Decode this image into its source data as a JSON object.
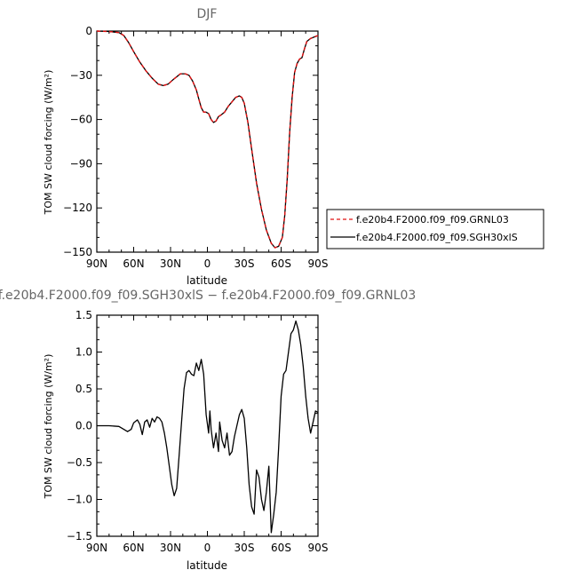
{
  "chart_data": [
    {
      "type": "line",
      "title": "DJF",
      "xlabel": "latitude",
      "ylabel": "TOM SW cloud forcing (W/m²)",
      "xlim": [
        -90,
        90
      ],
      "ylim": [
        -150,
        0
      ],
      "xticks": [
        -90,
        -60,
        -30,
        0,
        30,
        60,
        90
      ],
      "xtick_labels": [
        "90N",
        "60N",
        "30N",
        "0",
        "30S",
        "60S",
        "90S"
      ],
      "yticks": [
        -150,
        -120,
        -90,
        -60,
        -30,
        0
      ],
      "ytick_labels": [
        "−150",
        "−120",
        "−90",
        "−60",
        "−30",
        "0"
      ],
      "grid": false,
      "legend_position": "outside-right",
      "series": [
        {
          "name": "f.e20b4.F2000.f09_f09.GRNL03",
          "color": "#e01010",
          "dash": "dashed",
          "x": [
            -90,
            -80,
            -72,
            -68,
            -64,
            -60,
            -55,
            -50,
            -45,
            -40,
            -36,
            -32,
            -28,
            -25,
            -22,
            -18,
            -15,
            -12,
            -9,
            -7,
            -5,
            -3,
            -1,
            1,
            3,
            5,
            7,
            9,
            11,
            14,
            17,
            20,
            23,
            26,
            28,
            30,
            33,
            36,
            40,
            44,
            48,
            52,
            55,
            58,
            61,
            63,
            65,
            67,
            69,
            71,
            73,
            75,
            77,
            79,
            81,
            84,
            87,
            90
          ],
          "y": [
            0,
            -0.3,
            -1,
            -3,
            -8,
            -14,
            -21,
            -27,
            -32,
            -36,
            -37,
            -36,
            -33,
            -31,
            -29,
            -29,
            -30,
            -34,
            -40,
            -46,
            -52,
            -55,
            -55,
            -56,
            -60,
            -62,
            -61,
            -58,
            -57,
            -55,
            -51,
            -48,
            -45,
            -44,
            -45,
            -49,
            -62,
            -80,
            -103,
            -121,
            -135,
            -144,
            -147,
            -146,
            -140,
            -125,
            -100,
            -68,
            -45,
            -28,
            -22,
            -19,
            -18,
            -12,
            -7,
            -5,
            -4,
            -3
          ]
        },
        {
          "name": "f.e20b4.F2000.f09_f09.SGH30xlS",
          "color": "#000000",
          "dash": "solid",
          "x": [
            -90,
            -80,
            -72,
            -68,
            -64,
            -60,
            -55,
            -50,
            -45,
            -40,
            -36,
            -32,
            -28,
            -25,
            -22,
            -18,
            -15,
            -12,
            -9,
            -7,
            -5,
            -3,
            -1,
            1,
            3,
            5,
            7,
            9,
            11,
            14,
            17,
            20,
            23,
            26,
            28,
            30,
            33,
            36,
            40,
            44,
            48,
            52,
            55,
            58,
            61,
            63,
            65,
            67,
            69,
            71,
            73,
            75,
            77,
            79,
            81,
            84,
            87,
            90
          ],
          "y": [
            0,
            -0.3,
            -1,
            -3,
            -8,
            -14,
            -21,
            -27,
            -32,
            -36,
            -37,
            -36,
            -33,
            -31,
            -29,
            -29,
            -30,
            -34,
            -40,
            -46,
            -52,
            -55,
            -55,
            -56,
            -60,
            -62,
            -61,
            -58,
            -57,
            -55,
            -51,
            -48,
            -45,
            -44,
            -45,
            -49,
            -62,
            -80,
            -103,
            -121,
            -135,
            -144,
            -147,
            -146,
            -140,
            -125,
            -100,
            -68,
            -45,
            -28,
            -22,
            -19,
            -18,
            -12,
            -7,
            -5,
            -4,
            -3
          ]
        }
      ]
    },
    {
      "type": "line",
      "title": "f.e20b4.F2000.f09_f09.SGH30xlS − f.e20b4.F2000.f09_f09.GRNL03",
      "xlabel": "latitude",
      "ylabel": "TOM SW cloud forcing (W/m²)",
      "xlim": [
        -90,
        90
      ],
      "ylim": [
        -1.5,
        1.5
      ],
      "xticks": [
        -90,
        -60,
        -30,
        0,
        30,
        60,
        90
      ],
      "xtick_labels": [
        "90N",
        "60N",
        "30N",
        "0",
        "30S",
        "60S",
        "90S"
      ],
      "yticks": [
        -1.5,
        -1.0,
        -0.5,
        0.0,
        0.5,
        1.0,
        1.5
      ],
      "ytick_labels": [
        "−1.5",
        "−1.0",
        "−0.5",
        "0.0",
        "0.5",
        "1.0",
        "1.5"
      ],
      "grid": false,
      "series": [
        {
          "color": "#000000",
          "x": [
            -90,
            -80,
            -72,
            -68,
            -65,
            -62,
            -60,
            -57,
            -55,
            -53,
            -51,
            -49,
            -47,
            -45,
            -43,
            -41,
            -39,
            -37,
            -35,
            -33,
            -31,
            -29,
            -27,
            -25,
            -23,
            -21,
            -19,
            -17,
            -15,
            -13,
            -11,
            -9,
            -7,
            -5,
            -3,
            -1,
            1,
            2,
            3,
            5,
            7,
            9,
            10,
            12,
            14,
            16,
            18,
            20,
            22,
            24,
            26,
            28,
            30,
            32,
            34,
            36,
            38,
            40,
            42,
            44,
            46,
            48,
            50,
            52,
            54,
            56,
            58,
            60,
            62,
            64,
            66,
            68,
            70,
            72,
            74,
            76,
            78,
            80,
            82,
            84,
            86,
            88,
            90
          ],
          "y": [
            0,
            0,
            -0.01,
            -0.05,
            -0.08,
            -0.05,
            0.04,
            0.08,
            0.02,
            -0.12,
            0.05,
            0.08,
            -0.02,
            0.1,
            0.05,
            0.12,
            0.1,
            0.05,
            -0.1,
            -0.3,
            -0.55,
            -0.8,
            -0.95,
            -0.85,
            -0.4,
            0.05,
            0.5,
            0.72,
            0.75,
            0.7,
            0.68,
            0.85,
            0.75,
            0.9,
            0.7,
            0.15,
            -0.1,
            0.2,
            -0.05,
            -0.3,
            -0.1,
            -0.35,
            0.05,
            -0.2,
            -0.3,
            -0.1,
            -0.4,
            -0.35,
            -0.15,
            0.0,
            0.15,
            0.22,
            0.1,
            -0.3,
            -0.8,
            -1.1,
            -1.2,
            -0.6,
            -0.7,
            -1.0,
            -1.15,
            -0.9,
            -0.55,
            -1.45,
            -1.2,
            -0.9,
            -0.3,
            0.4,
            0.7,
            0.75,
            1.0,
            1.25,
            1.3,
            1.42,
            1.3,
            1.1,
            0.8,
            0.4,
            0.1,
            -0.1,
            0.05,
            0.2,
            0.18
          ]
        }
      ]
    }
  ]
}
